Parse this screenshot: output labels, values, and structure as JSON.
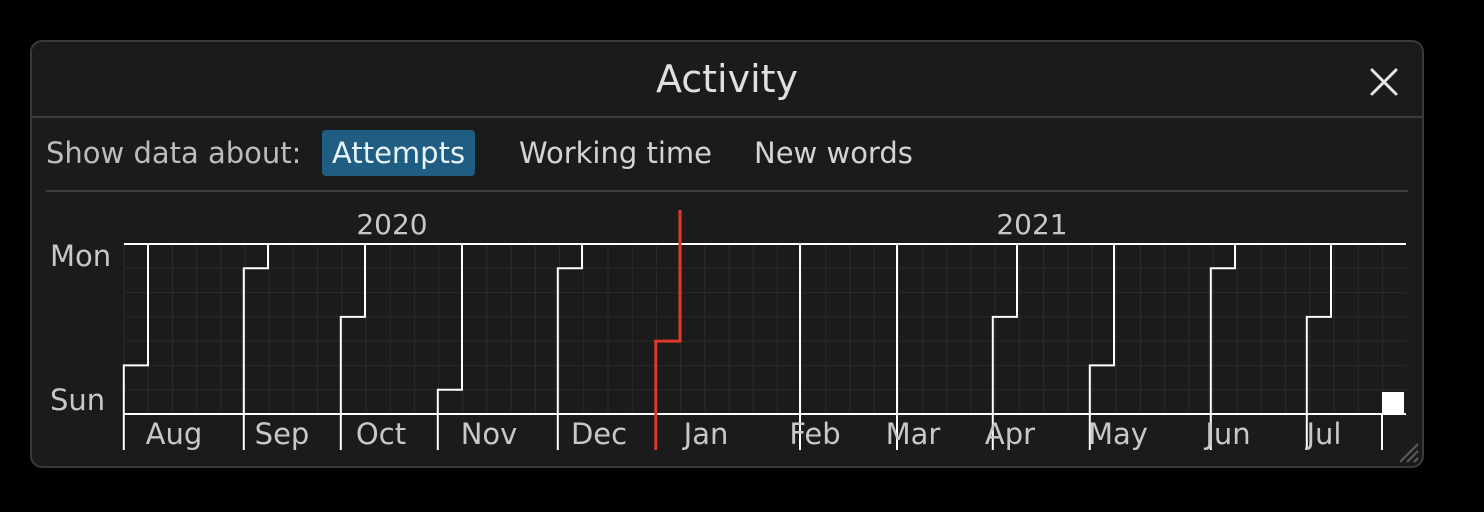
{
  "window": {
    "title": "Activity",
    "close_icon": "close-icon",
    "resize_icon": "resize-grip-icon"
  },
  "toolbar": {
    "label": "Show data about:",
    "options": [
      {
        "label": "Attempts",
        "selected": true
      },
      {
        "label": "Working time",
        "selected": false
      },
      {
        "label": "New words",
        "selected": false
      }
    ]
  },
  "colors": {
    "accent": "#1f5d82",
    "today_marker": "#e0382b",
    "grid_line": "#ffffff",
    "background": "#1b1b1b"
  },
  "chart_data": {
    "type": "heatmap",
    "title": "",
    "years": [
      "2020",
      "2021"
    ],
    "day_labels": [
      "Mon",
      "Sun"
    ],
    "months": [
      "Aug",
      "Sep",
      "Oct",
      "Nov",
      "Dec",
      "Jan",
      "Feb",
      "Mar",
      "Apr",
      "May",
      "Jun",
      "Jul"
    ],
    "grid": true,
    "values": "no activity shown",
    "today_marker": "between Dec and Jan"
  }
}
